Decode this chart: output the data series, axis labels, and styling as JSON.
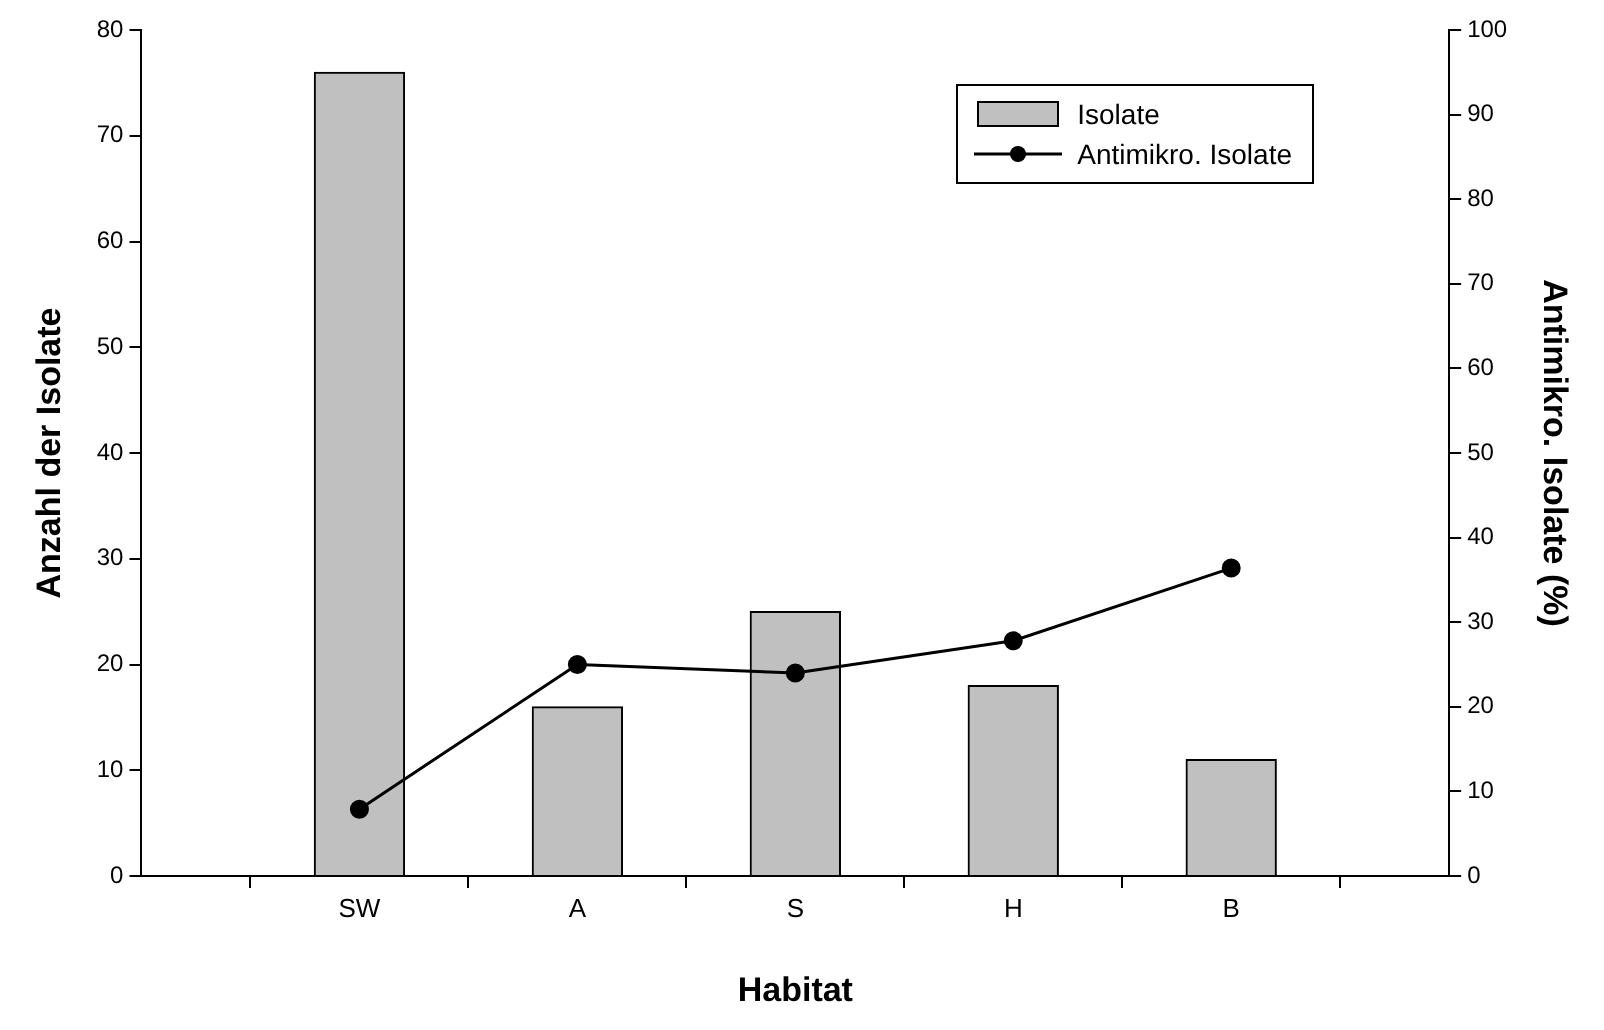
{
  "chart_data": {
    "type": "bar",
    "xlabel": "Habitat",
    "ylabel": "Anzahl der Isolate",
    "y2label": "Antimikro. Isolate (%)",
    "categories": [
      "SW",
      "A",
      "S",
      "H",
      "B"
    ],
    "series": [
      {
        "name": "Isolate",
        "color": "#c0c0c0",
        "values": [
          76,
          16,
          25,
          18,
          11
        ]
      },
      {
        "name": "Antimikro. Isolate",
        "type": "line",
        "axis": "y2",
        "color": "#000000",
        "values": [
          7.9,
          25,
          24,
          27.8,
          36.4
        ]
      }
    ],
    "ylim": [
      0,
      80
    ],
    "yticks": [
      0,
      10,
      20,
      30,
      40,
      50,
      60,
      70,
      80
    ],
    "y2lim": [
      0,
      100
    ],
    "y2ticks": [
      0,
      10,
      20,
      30,
      40,
      50,
      60,
      70,
      80,
      90,
      100
    ],
    "grid": false,
    "legend": "top right",
    "marker": "circle",
    "line_style": "solid"
  }
}
